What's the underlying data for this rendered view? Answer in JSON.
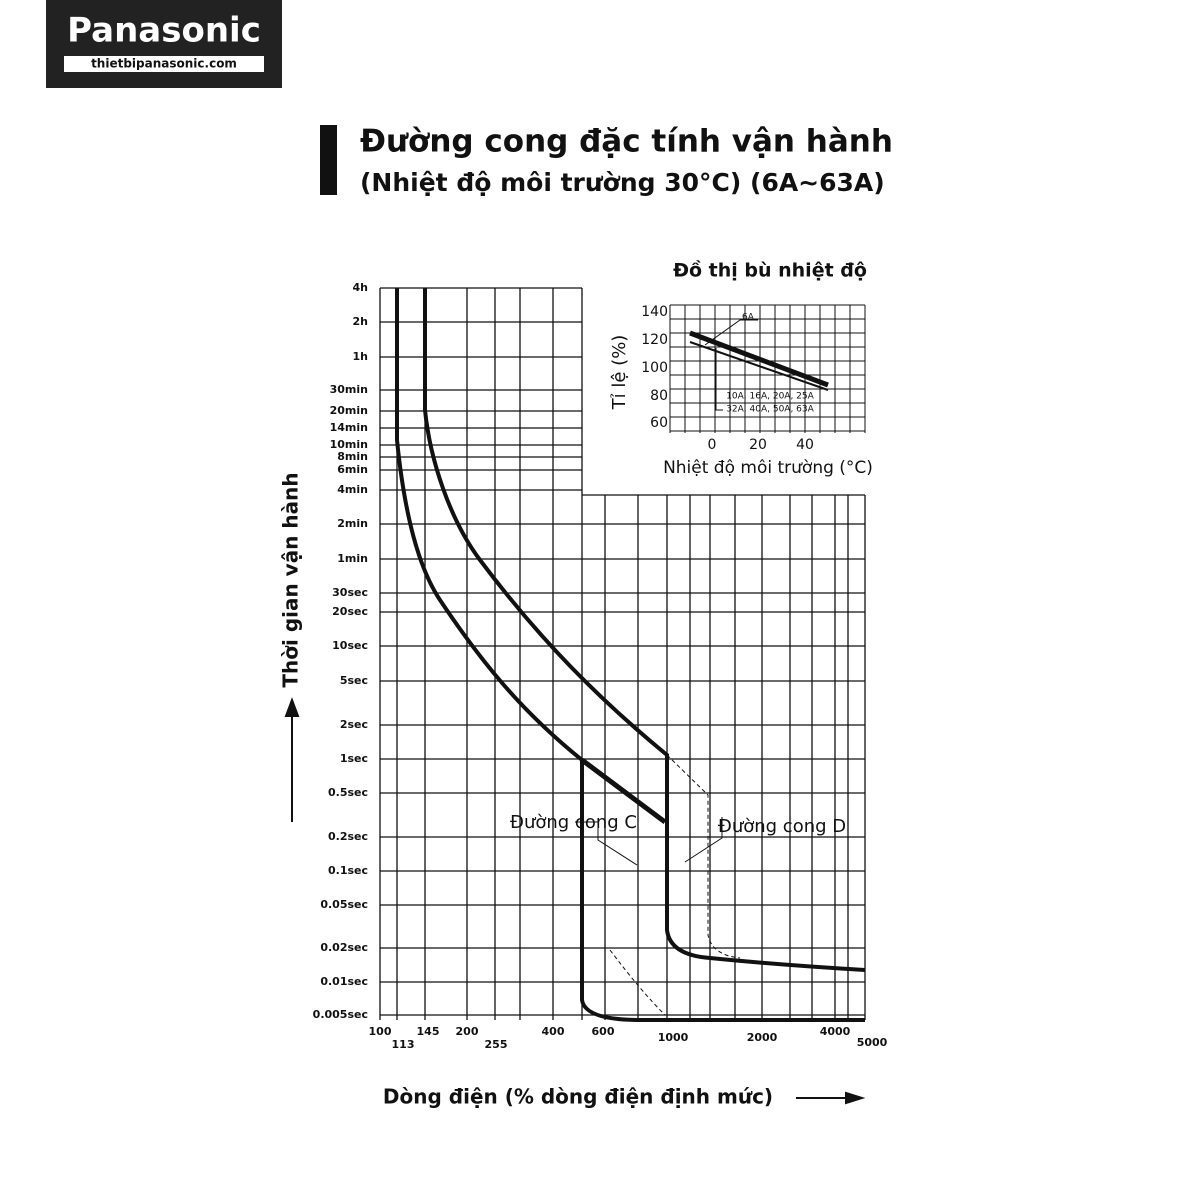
{
  "logo": {
    "brand": "Panasonic",
    "site": "thietbipanasonic.com"
  },
  "title": {
    "line1": "Đường cong đặc tính vận hành",
    "line2": "(Nhiệt độ môi trường 30°C) (6A~63A)"
  },
  "main_chart": {
    "y_axis_label": "Thời gian vận hành",
    "x_axis_label": "Dòng điện (% dòng điện định mức)",
    "y_ticks": [
      "4h",
      "2h",
      "1h",
      "30min",
      "20min",
      "14min",
      "10min",
      "8min",
      "6min",
      "4min",
      "2min",
      "1min",
      "30sec",
      "20sec",
      "10sec",
      "5sec",
      "2sec",
      "1sec",
      "0.5sec",
      "0.2sec",
      "0.1sec",
      "0.05sec",
      "0.02sec",
      "0.01sec",
      "0.005sec"
    ],
    "x_ticks": [
      "100",
      "113",
      "145",
      "200",
      "255",
      "400",
      "600",
      "1000",
      "2000",
      "4000",
      "5000"
    ],
    "annotations": [
      "Đường cong C",
      "Đường cong D"
    ]
  },
  "inset": {
    "title": "Đồ thị bù nhiệt độ",
    "y_axis_label": "Tỉ lệ (%)",
    "x_axis_label": "Nhiệt độ môi trường (°C)",
    "y_ticks": [
      "140",
      "120",
      "100",
      "80",
      "60"
    ],
    "x_ticks": [
      "0",
      "20",
      "40"
    ],
    "annotations": [
      "6A",
      "10A, 16A, 20A, 25A",
      "32A, 40A, 50A, 63A"
    ]
  }
}
